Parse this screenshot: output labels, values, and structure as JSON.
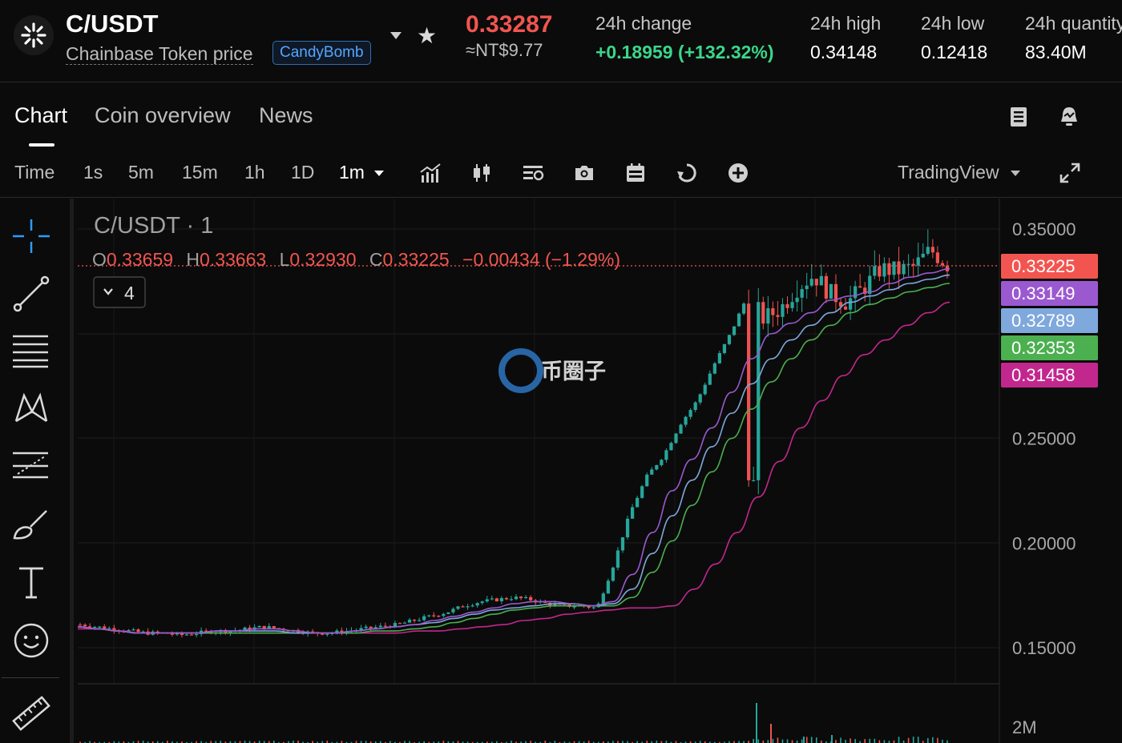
{
  "header": {
    "pair": "C/USDT",
    "token_name": "Chainbase Token price",
    "badge": "CandyBomb",
    "price": "0.33287",
    "fiat_price": "≈NT$9.77",
    "stats": [
      {
        "label": "24h change",
        "value": "+0.18959 (+132.32%)"
      },
      {
        "label": "24h high",
        "value": "0.34148"
      },
      {
        "label": "24h low",
        "value": "0.12418"
      },
      {
        "label": "24h quantity",
        "value": "83.40M"
      }
    ]
  },
  "tabs": [
    "Chart",
    "Coin overview",
    "News"
  ],
  "timeframes": [
    "Time",
    "1s",
    "5m",
    "15m",
    "1h",
    "1D",
    "1m"
  ],
  "active_timeframe": "1m",
  "provider": "TradingView",
  "chart": {
    "title": "C/USDT · 1",
    "ohlc": {
      "o_label": "O",
      "o": "0.33659",
      "h_label": "H",
      "h": "0.33663",
      "l_label": "L",
      "l": "0.32930",
      "c_label": "C",
      "c": "0.33225",
      "change": "−0.00434 (−1.29%)"
    },
    "indicators_toggle": "4",
    "watermark": "币圈子",
    "price_tags": [
      {
        "value": "0.33225",
        "color": "#f2554f"
      },
      {
        "value": "0.33149",
        "color": "#9b59d0"
      },
      {
        "value": "0.32789",
        "color": "#7fa8dc"
      },
      {
        "value": "0.32353",
        "color": "#4caf50"
      },
      {
        "value": "0.31458",
        "color": "#c2278e"
      }
    ],
    "volume_label": "2M"
  },
  "chart_data": {
    "type": "candlestick",
    "title": "C/USDT · 1",
    "ylim": [
      0.125,
      0.36
    ],
    "yticks": [
      "0.35000",
      "0.25000",
      "0.20000",
      "0.15000"
    ],
    "close_path": [
      0.161,
      0.16,
      0.159,
      0.158,
      0.157,
      0.157,
      0.156,
      0.157,
      0.158,
      0.158,
      0.159,
      0.16,
      0.159,
      0.158,
      0.157,
      0.157,
      0.158,
      0.159,
      0.16,
      0.161,
      0.163,
      0.165,
      0.167,
      0.17,
      0.172,
      0.173,
      0.174,
      0.173,
      0.171,
      0.17,
      0.17,
      0.169,
      0.19,
      0.215,
      0.232,
      0.242,
      0.257,
      0.268,
      0.285,
      0.3,
      0.318,
      0.307,
      0.312,
      0.322,
      0.328,
      0.319,
      0.315,
      0.322,
      0.331,
      0.33,
      0.332,
      0.34,
      0.333
    ],
    "sma_fast": [
      0.16,
      0.159,
      0.158,
      0.157,
      0.157,
      0.157,
      0.157,
      0.158,
      0.158,
      0.159,
      0.159,
      0.158,
      0.157,
      0.157,
      0.158,
      0.159,
      0.16,
      0.161,
      0.163,
      0.165,
      0.167,
      0.169,
      0.171,
      0.172,
      0.172,
      0.171,
      0.17,
      0.172,
      0.185,
      0.205,
      0.225,
      0.24,
      0.255,
      0.272,
      0.288,
      0.3,
      0.305,
      0.31,
      0.316,
      0.318,
      0.32,
      0.324,
      0.327,
      0.329,
      0.331
    ],
    "sma_mid": [
      0.16,
      0.159,
      0.158,
      0.157,
      0.157,
      0.157,
      0.157,
      0.158,
      0.158,
      0.158,
      0.158,
      0.157,
      0.157,
      0.157,
      0.158,
      0.159,
      0.16,
      0.161,
      0.162,
      0.164,
      0.166,
      0.168,
      0.169,
      0.17,
      0.171,
      0.171,
      0.17,
      0.171,
      0.178,
      0.195,
      0.213,
      0.23,
      0.246,
      0.262,
      0.276,
      0.288,
      0.297,
      0.304,
      0.31,
      0.315,
      0.318,
      0.321,
      0.324,
      0.326,
      0.328
    ],
    "sma_slow": [
      0.16,
      0.159,
      0.158,
      0.157,
      0.157,
      0.157,
      0.157,
      0.157,
      0.157,
      0.157,
      0.157,
      0.157,
      0.157,
      0.157,
      0.157,
      0.158,
      0.158,
      0.159,
      0.16,
      0.162,
      0.164,
      0.166,
      0.168,
      0.169,
      0.17,
      0.17,
      0.17,
      0.17,
      0.174,
      0.186,
      0.201,
      0.218,
      0.234,
      0.25,
      0.264,
      0.277,
      0.288,
      0.297,
      0.304,
      0.31,
      0.314,
      0.317,
      0.32,
      0.322,
      0.324
    ],
    "ema_long": [
      0.159,
      0.159,
      0.158,
      0.157,
      0.157,
      0.157,
      0.157,
      0.157,
      0.157,
      0.157,
      0.157,
      0.157,
      0.157,
      0.157,
      0.157,
      0.157,
      0.158,
      0.158,
      0.159,
      0.16,
      0.161,
      0.163,
      0.164,
      0.166,
      0.167,
      0.168,
      0.169,
      0.169,
      0.17,
      0.178,
      0.19,
      0.205,
      0.222,
      0.239,
      0.255,
      0.268,
      0.28,
      0.29,
      0.297,
      0.304,
      0.31,
      0.315
    ]
  }
}
